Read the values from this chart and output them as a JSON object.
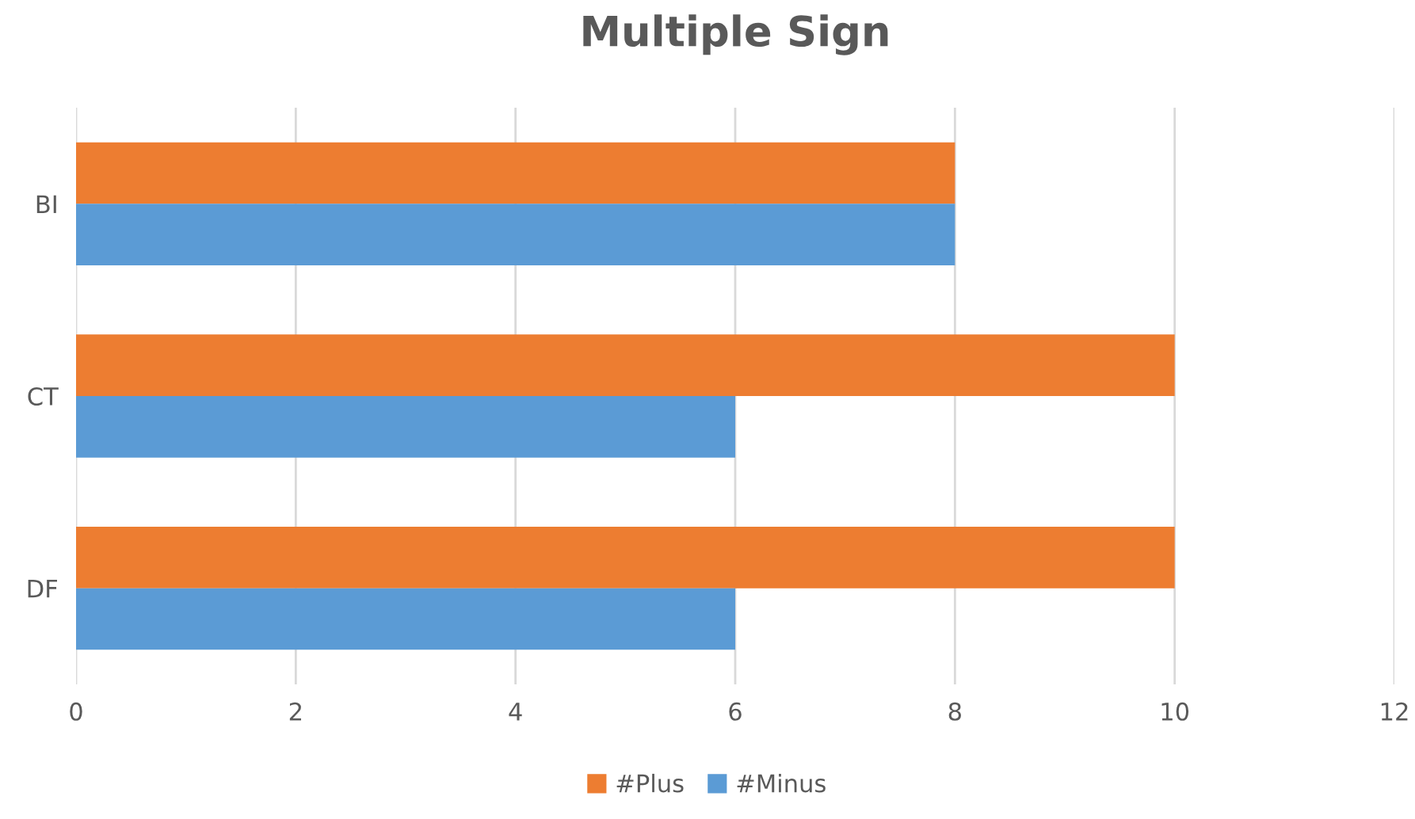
{
  "chart_data": {
    "type": "bar",
    "title": "Multiple Sign",
    "orientation": "horizontal",
    "categories": [
      "BI",
      "CT",
      "DF"
    ],
    "series": [
      {
        "name": "#Plus",
        "color": "#ed7d31",
        "values": [
          8,
          10,
          10
        ]
      },
      {
        "name": "#Minus",
        "color": "#5b9bd5",
        "values": [
          8,
          6,
          6
        ]
      }
    ],
    "xlim": [
      0,
      12
    ],
    "xticks": [
      0,
      2,
      4,
      6,
      8,
      10,
      12
    ],
    "grid": "x",
    "legend": "bottom"
  }
}
